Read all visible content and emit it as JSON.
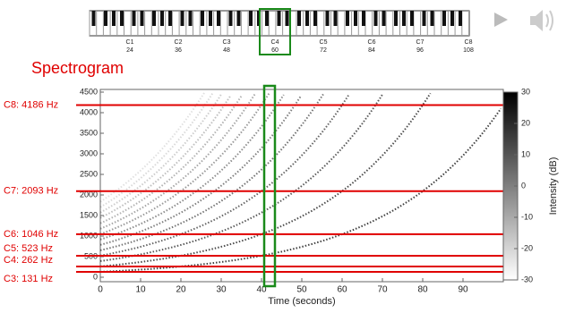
{
  "keyboard": {
    "octaves": [
      {
        "name": "C1",
        "midi": 24
      },
      {
        "name": "C2",
        "midi": 36
      },
      {
        "name": "C3",
        "midi": 48
      },
      {
        "name": "C4",
        "midi": 60
      },
      {
        "name": "C5",
        "midi": 72
      },
      {
        "name": "C6",
        "midi": 84
      },
      {
        "name": "C7",
        "midi": 96
      },
      {
        "name": "C8",
        "midi": 108
      }
    ],
    "highlight": "C4"
  },
  "chart_data": {
    "type": "spectrogram",
    "title": "Spectrogram",
    "xlabel": "Time (seconds)",
    "xlim": [
      0,
      100
    ],
    "xticks": [
      0,
      10,
      20,
      30,
      40,
      50,
      60,
      70,
      80,
      90
    ],
    "ylim": [
      0,
      4500
    ],
    "yticks": [
      0,
      500,
      1000,
      1500,
      2000,
      2500,
      3000,
      3500,
      4000,
      4500
    ],
    "marker_time": 42,
    "marker_color": "#1a8a1a",
    "lines": [
      {
        "label": "C8: 4186 Hz",
        "value": 4186
      },
      {
        "label": "C7: 2093 Hz",
        "value": 2093
      },
      {
        "label": "C6: 1046 Hz",
        "value": 1046
      },
      {
        "label": "C5: 523 Hz",
        "value": 523
      },
      {
        "label": "C4: 262 Hz",
        "value": 262
      },
      {
        "label": "C3: 131 Hz",
        "value": 131
      }
    ],
    "line_color": "#e00000",
    "colorbar": {
      "label": "Intensity (dB)",
      "lim": [
        -30,
        30
      ],
      "ticks": [
        30,
        20,
        10,
        0,
        -10,
        -20,
        -30
      ]
    }
  }
}
